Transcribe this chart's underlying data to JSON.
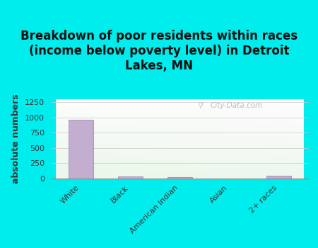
{
  "title": "Breakdown of poor residents within races\n(income below poverty level) in Detroit\nLakes, MN",
  "categories": [
    "White",
    "Black",
    "American Indian",
    "Asian",
    "2+ races"
  ],
  "values": [
    963,
    30,
    22,
    0,
    50
  ],
  "bar_color": "#c4aed0",
  "bar_edge_color": "#a08ab8",
  "ylabel": "absolute numbers",
  "ylim": [
    0,
    1300
  ],
  "yticks": [
    0,
    250,
    500,
    750,
    1000,
    1250
  ],
  "background_outer": "#00eded",
  "bg_grad_top": "#cce8cc",
  "bg_grad_bottom": "#f5fff5",
  "bg_right_light": "#e8f8f0",
  "grid_color": "#c8c8c8",
  "watermark": "City-Data.com",
  "title_fontsize": 12,
  "ylabel_fontsize": 9,
  "title_color": "#111111"
}
